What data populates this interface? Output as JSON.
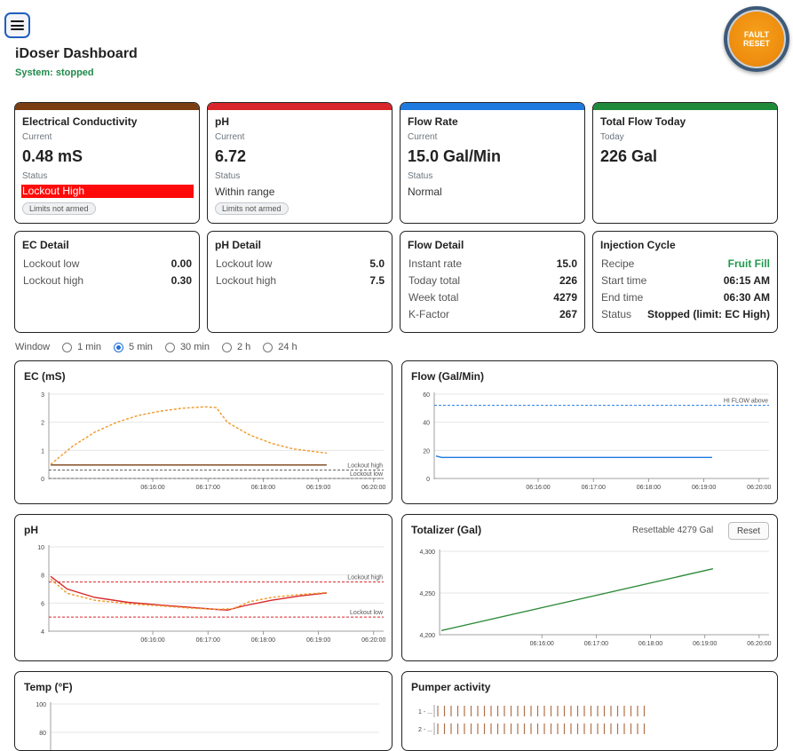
{
  "header": {
    "title": "iDoser Dashboard",
    "system_status": "System: stopped",
    "fault_reset_label": "FAULT RESET"
  },
  "summary_cards": {
    "ec": {
      "title": "Electrical Conductivity",
      "current_label": "Current",
      "value": "0.48 mS",
      "status_label": "Status",
      "status": "Lockout High",
      "pill": "Limits not armed",
      "accent": "#7a3e12"
    },
    "ph": {
      "title": "pH",
      "current_label": "Current",
      "value": "6.72",
      "status_label": "Status",
      "status": "Within range",
      "pill": "Limits not armed",
      "accent": "#d9262a"
    },
    "flow": {
      "title": "Flow Rate",
      "current_label": "Current",
      "value": "15.0 Gal/Min",
      "status_label": "Status",
      "status": "Normal",
      "accent": "#1f7ae0"
    },
    "total": {
      "title": "Total Flow Today",
      "today_label": "Today",
      "value": "226 Gal",
      "accent": "#1e8a3a"
    }
  },
  "detail_cards": {
    "ec": {
      "title": "EC Detail",
      "rows": [
        {
          "k": "Lockout low",
          "v": "0.00"
        },
        {
          "k": "Lockout high",
          "v": "0.30"
        }
      ]
    },
    "ph": {
      "title": "pH Detail",
      "rows": [
        {
          "k": "Lockout low",
          "v": "5.0"
        },
        {
          "k": "Lockout high",
          "v": "7.5"
        }
      ]
    },
    "flow": {
      "title": "Flow Detail",
      "rows": [
        {
          "k": "Instant rate",
          "v": "15.0"
        },
        {
          "k": "Today total",
          "v": "226"
        },
        {
          "k": "Week total",
          "v": "4279"
        },
        {
          "k": "K-Factor",
          "v": "267"
        }
      ]
    },
    "injection": {
      "title": "Injection Cycle",
      "rows": [
        {
          "k": "Recipe",
          "v": "Fruit Fill"
        },
        {
          "k": "Start time",
          "v": "06:15 AM"
        },
        {
          "k": "End time",
          "v": "06:30 AM"
        },
        {
          "k": "Status",
          "v": "Stopped (limit: EC High)"
        }
      ]
    }
  },
  "window": {
    "label": "Window",
    "options": [
      "1 min",
      "5 min",
      "30 min",
      "2 h",
      "24 h"
    ],
    "selected": "5 min"
  },
  "panels": {
    "ec": "EC (mS)",
    "flow": "Flow (Gal/Min)",
    "ph": "pH",
    "totalizer": "Totalizer (Gal)",
    "totalizer_resettable": "Resettable 4279 Gal",
    "reset_label": "Reset",
    "temp": "Temp (°F)",
    "pumper": "Pumper activity"
  },
  "chart_data": [
    {
      "id": "ec",
      "type": "line",
      "title": "EC (mS)",
      "x_ticks": [
        "06:16:00",
        "06:17:00",
        "06:18:00",
        "06:19:00",
        "06:20:00"
      ],
      "ylim": [
        0,
        3
      ],
      "y_ticks": [
        "0",
        "1",
        "2",
        "3"
      ],
      "grid": true,
      "series": [
        {
          "style": "solid",
          "color": "#7a3e12",
          "x": [
            0,
            5
          ],
          "y": [
            0.48,
            0.48
          ]
        },
        {
          "style": "dashed",
          "color": "#ef9a2a",
          "x": [
            0,
            0.4,
            0.8,
            1.2,
            1.6,
            2.0,
            2.4,
            2.8,
            3.0,
            3.2,
            3.6,
            4.0,
            4.4,
            4.8,
            5.0
          ],
          "y": [
            0.5,
            1.15,
            1.65,
            2.0,
            2.25,
            2.4,
            2.5,
            2.55,
            2.52,
            2.0,
            1.55,
            1.25,
            1.05,
            0.95,
            0.9
          ]
        }
      ],
      "thresholds": [
        {
          "label": "Lockout high",
          "y": 0.3,
          "color": "#666"
        },
        {
          "label": "Lockout low",
          "y": 0.0,
          "color": "#666"
        }
      ]
    },
    {
      "id": "flow",
      "type": "line",
      "title": "Flow (Gal/Min)",
      "x_ticks": [
        "06:16:00",
        "06:17:00",
        "06:18:00",
        "06:19:00",
        "06:20:00"
      ],
      "ylim": [
        0,
        60
      ],
      "y_ticks": [
        "0",
        "20",
        "40",
        "60"
      ],
      "grid": true,
      "series": [
        {
          "style": "solid",
          "color": "#1f7ae0",
          "x": [
            0,
            0.1,
            0.3,
            5
          ],
          "y": [
            16,
            15,
            15,
            15
          ]
        }
      ],
      "thresholds": [
        {
          "label": "HI FLOW above",
          "y": 52,
          "color": "#1f7ae0"
        }
      ]
    },
    {
      "id": "ph",
      "type": "line",
      "title": "pH",
      "x_ticks": [
        "06:16:00",
        "06:17:00",
        "06:18:00",
        "06:19:00",
        "06:20:00"
      ],
      "ylim": [
        4,
        10
      ],
      "y_ticks": [
        "4",
        "6",
        "8",
        "10"
      ],
      "grid": true,
      "series": [
        {
          "style": "solid",
          "color": "#d9262a",
          "x": [
            0,
            0.3,
            0.8,
            1.4,
            2.0,
            2.5,
            3.0,
            3.2,
            3.5,
            4.0,
            4.5,
            5.0
          ],
          "y": [
            7.9,
            7.0,
            6.4,
            6.05,
            5.85,
            5.7,
            5.55,
            5.5,
            5.8,
            6.2,
            6.5,
            6.72
          ]
        },
        {
          "style": "dashed",
          "color": "#ef9a2a",
          "x": [
            0,
            0.3,
            0.8,
            1.4,
            2.0,
            2.5,
            3.0,
            3.3,
            3.6,
            4.0,
            4.5,
            5.0
          ],
          "y": [
            7.7,
            6.7,
            6.2,
            5.95,
            5.8,
            5.65,
            5.55,
            5.6,
            6.1,
            6.4,
            6.6,
            6.75
          ]
        }
      ],
      "thresholds": [
        {
          "label": "Lockout high",
          "y": 7.5,
          "color": "#d9262a"
        },
        {
          "label": "Lockout low",
          "y": 5.0,
          "color": "#d9262a"
        }
      ]
    },
    {
      "id": "totalizer",
      "type": "line",
      "title": "Totalizer (Gal)",
      "x_ticks": [
        "06:16:00",
        "06:17:00",
        "06:18:00",
        "06:19:00",
        "06:20:00"
      ],
      "ylim": [
        4200,
        4300
      ],
      "y_ticks": [
        "4,200",
        "4,250",
        "4,300"
      ],
      "grid": true,
      "series": [
        {
          "style": "solid",
          "color": "#2e8b3a",
          "x": [
            0,
            5
          ],
          "y": [
            4205,
            4279
          ]
        }
      ]
    },
    {
      "id": "temp",
      "type": "line",
      "title": "Temp (°F)",
      "y_ticks": [
        "80",
        "100"
      ],
      "grid": true,
      "series": []
    },
    {
      "id": "pumper",
      "type": "bar",
      "title": "Pumper activity",
      "y_ticks": [
        "1 - ...",
        "2 - ..."
      ],
      "rows": [
        {
          "name": "1 - ...",
          "pulses": 32
        },
        {
          "name": "2 - ...",
          "pulses": 32
        }
      ],
      "color": "#b0704a"
    }
  ]
}
